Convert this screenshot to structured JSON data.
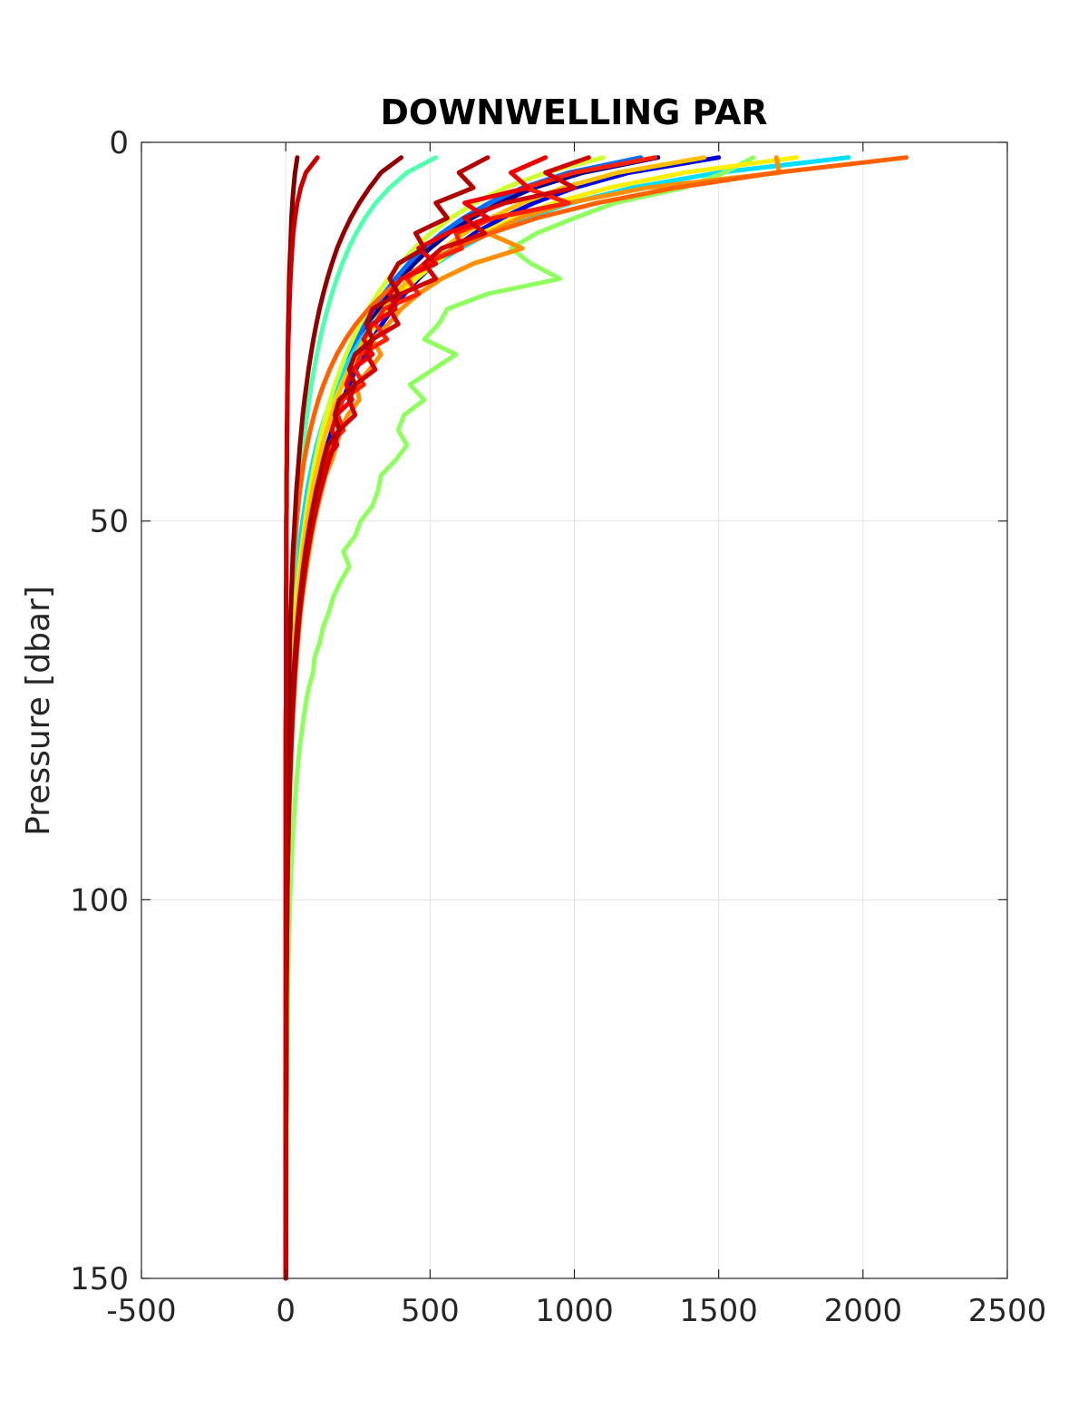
{
  "chart_data": {
    "type": "line",
    "title": "DOWNWELLING PAR",
    "xlabel": "",
    "ylabel": "Pressure [dbar]",
    "xlim": [
      -500,
      2500
    ],
    "ylim": [
      0,
      150
    ],
    "y_reversed": true,
    "grid": true,
    "xticks": [
      -500,
      0,
      500,
      1000,
      1500,
      2000,
      2500
    ],
    "yticks": [
      0,
      50,
      100,
      150
    ],
    "xtick_labels": [
      "-500",
      "0",
      "500",
      "1000",
      "1500",
      "2000",
      "2500"
    ],
    "ytick_labels": [
      "0",
      "50",
      "100",
      "150"
    ],
    "colormap": "jet",
    "y": [
      2,
      4,
      6,
      8,
      10,
      12,
      14,
      16,
      18,
      20,
      22,
      24,
      26,
      28,
      30,
      32,
      34,
      36,
      38,
      40,
      42,
      44,
      46,
      48,
      50,
      52,
      54,
      56,
      58,
      60,
      62,
      64,
      66,
      68,
      70,
      72,
      74,
      76,
      78,
      80,
      85,
      90,
      95,
      100,
      110,
      120,
      130,
      140,
      150
    ],
    "series": [
      {
        "color": "#00008F",
        "x": [
          1290,
          1030,
          860,
          740,
          645,
          565,
          500,
          445,
          400,
          360,
          323,
          290,
          262,
          236,
          213,
          192,
          173,
          156,
          141,
          127,
          114,
          103,
          93,
          84,
          76,
          68,
          62,
          56,
          50,
          45,
          41,
          37,
          33,
          30,
          27,
          24,
          22,
          20,
          18,
          16,
          12,
          9,
          7,
          5,
          3,
          2,
          1,
          1,
          0
        ]
      },
      {
        "color": "#0000DD",
        "x": [
          1500,
          1190,
          1000,
          860,
          750,
          655,
          580,
          515,
          460,
          412,
          370,
          333,
          300,
          270,
          243,
          219,
          197,
          177,
          160,
          144,
          130,
          117,
          105,
          95,
          85,
          77,
          69,
          62,
          56,
          50,
          45,
          41,
          37,
          33,
          30,
          27,
          24,
          22,
          20,
          18,
          13,
          10,
          7,
          5,
          3,
          2,
          1,
          1,
          0
        ]
      },
      {
        "color": "#006FFF",
        "x": [
          1230,
          980,
          820,
          705,
          615,
          540,
          478,
          425,
          380,
          340,
          305,
          274,
          247,
          222,
          200,
          180,
          162,
          146,
          131,
          118,
          106,
          96,
          86,
          78,
          70,
          63,
          57,
          51,
          46,
          41,
          37,
          34,
          30,
          27,
          25,
          22,
          20,
          18,
          16,
          15,
          11,
          8,
          6,
          4,
          2,
          1,
          1,
          0,
          0
        ]
      },
      {
        "color": "#00DFFF",
        "x": [
          1950,
          1500,
          1200,
          990,
          830,
          705,
          605,
          520,
          450,
          392,
          342,
          299,
          262,
          230,
          202,
          178,
          157,
          138,
          122,
          107,
          95,
          84,
          74,
          66,
          58,
          51,
          46,
          41,
          36,
          32,
          28,
          25,
          22,
          20,
          18,
          16,
          14,
          12,
          11,
          10,
          7,
          5,
          4,
          3,
          1,
          1,
          0,
          0,
          0
        ]
      },
      {
        "color": "#50FFAF",
        "x": [
          520,
          420,
          360,
          312,
          275,
          244,
          218,
          196,
          177,
          160,
          145,
          131,
          119,
          108,
          98,
          89,
          81,
          74,
          67,
          61,
          56,
          51,
          46,
          42,
          38,
          35,
          32,
          29,
          26,
          24,
          22,
          20,
          18,
          16,
          15,
          14,
          12,
          11,
          10,
          9,
          7,
          5,
          4,
          3,
          2,
          1,
          1,
          0,
          0
        ]
      },
      {
        "color": "#8FFF60",
        "x": [
          1620,
          1520,
          1380,
          1140,
          1000,
          870,
          780,
          850,
          950,
          700,
          560,
          530,
          480,
          590,
          510,
          430,
          480,
          410,
          390,
          420,
          380,
          330,
          320,
          300,
          260,
          240,
          200,
          220,
          190,
          165,
          150,
          130,
          118,
          100,
          95,
          80,
          70,
          62,
          55,
          48,
          36,
          27,
          20,
          15,
          8,
          5,
          3,
          2,
          1
        ]
      },
      {
        "color": "#D0FF2F",
        "x": [
          1100,
          900,
          760,
          655,
          572,
          503,
          446,
          397,
          355,
          318,
          286,
          257,
          232,
          209,
          189,
          170,
          154,
          139,
          125,
          113,
          102,
          92,
          83,
          75,
          68,
          61,
          55,
          50,
          45,
          40,
          36,
          33,
          30,
          27,
          24,
          22,
          20,
          18,
          16,
          14,
          10,
          8,
          6,
          4,
          2,
          1,
          1,
          0,
          0
        ]
      },
      {
        "color": "#FFEF00",
        "x": [
          1770,
          1380,
          1120,
          930,
          790,
          680,
          590,
          515,
          452,
          398,
          352,
          311,
          276,
          245,
          218,
          194,
          172,
          153,
          136,
          121,
          108,
          96,
          86,
          76,
          68,
          61,
          54,
          48,
          43,
          38,
          34,
          31,
          27,
          24,
          22,
          19,
          17,
          15,
          14,
          12,
          9,
          6,
          5,
          3,
          2,
          1,
          0,
          0,
          0
        ]
      },
      {
        "color": "#FFBF00",
        "x": [
          1450,
          1150,
          960,
          820,
          710,
          620,
          545,
          482,
          428,
          381,
          340,
          304,
          272,
          244,
          218,
          196,
          176,
          158,
          142,
          127,
          114,
          103,
          92,
          83,
          74,
          67,
          60,
          54,
          48,
          43,
          39,
          35,
          31,
          28,
          25,
          23,
          20,
          18,
          16,
          15,
          11,
          8,
          6,
          4,
          2,
          1,
          1,
          0,
          0
        ]
      },
      {
        "color": "#FF8F00",
        "x": [
          1700,
          1710,
          1250,
          980,
          810,
          700,
          820,
          650,
          540,
          460,
          400,
          355,
          300,
          330,
          290,
          245,
          255,
          215,
          190,
          175,
          160,
          138,
          125,
          112,
          100,
          90,
          81,
          73,
          65,
          58,
          52,
          47,
          42,
          38,
          34,
          31,
          28,
          25,
          22,
          20,
          15,
          11,
          8,
          6,
          3,
          2,
          1,
          0,
          0
        ]
      },
      {
        "color": "#FF6000",
        "x": [
          2150,
          1700,
          1350,
          1080,
          870,
          710,
          585,
          485,
          405,
          340,
          287,
          243,
          207,
          177,
          152,
          131,
          113,
          98,
          85,
          74,
          64,
          56,
          49,
          43,
          38,
          33,
          29,
          26,
          23,
          20,
          18,
          16,
          14,
          12,
          11,
          10,
          9,
          8,
          7,
          6,
          4,
          3,
          2,
          2,
          1,
          0,
          0,
          0,
          0
        ]
      },
      {
        "color": "#FF2000",
        "x": [
          1280,
          1000,
          830,
          980,
          720,
          590,
          610,
          480,
          420,
          460,
          340,
          310,
          350,
          260,
          240,
          270,
          195,
          180,
          200,
          150,
          138,
          125,
          110,
          100,
          90,
          80,
          72,
          64,
          57,
          51,
          46,
          41,
          37,
          33,
          30,
          27,
          24,
          21,
          19,
          17,
          13,
          10,
          7,
          5,
          3,
          2,
          1,
          0,
          0
        ]
      },
      {
        "color": "#EF0000",
        "x": [
          900,
          780,
          840,
          620,
          700,
          560,
          460,
          520,
          400,
          360,
          380,
          300,
          270,
          300,
          230,
          210,
          230,
          175,
          160,
          178,
          135,
          122,
          108,
          97,
          87,
          78,
          70,
          62,
          56,
          50,
          45,
          40,
          36,
          32,
          29,
          26,
          23,
          21,
          19,
          17,
          12,
          9,
          7,
          5,
          3,
          2,
          1,
          0,
          0
        ]
      },
      {
        "color": "#D00000",
        "x": [
          1050,
          900,
          1000,
          760,
          620,
          690,
          540,
          480,
          520,
          400,
          360,
          390,
          300,
          280,
          310,
          240,
          220,
          240,
          185,
          168,
          150,
          135,
          120,
          108,
          96,
          86,
          77,
          69,
          62,
          55,
          49,
          44,
          40,
          36,
          32,
          29,
          26,
          23,
          21,
          19,
          14,
          10,
          7,
          5,
          3,
          2,
          1,
          0,
          0
        ]
      },
      {
        "color": "#B00000",
        "x": [
          700,
          600,
          650,
          520,
          560,
          450,
          480,
          390,
          360,
          390,
          300,
          280,
          300,
          240,
          220,
          240,
          185,
          170,
          185,
          145,
          130,
          118,
          105,
          95,
          85,
          76,
          68,
          61,
          55,
          49,
          44,
          39,
          35,
          31,
          28,
          25,
          23,
          20,
          18,
          16,
          12,
          9,
          6,
          4,
          2,
          1,
          1,
          0,
          0
        ]
      },
      {
        "color": "#900000",
        "x": [
          400,
          330,
          290,
          255,
          225,
          200,
          178,
          160,
          144,
          130,
          117,
          106,
          96,
          87,
          79,
          72,
          65,
          59,
          54,
          49,
          45,
          41,
          37,
          34,
          31,
          28,
          25,
          23,
          21,
          19,
          17,
          16,
          14,
          13,
          12,
          11,
          10,
          9,
          8,
          7,
          5,
          4,
          3,
          2,
          1,
          1,
          0,
          0,
          0
        ]
      },
      {
        "color": "#800000",
        "x": [
          40,
          32,
          27,
          23,
          20,
          18,
          16,
          14,
          12,
          11,
          10,
          9,
          8,
          7,
          7,
          6,
          5,
          5,
          4,
          4,
          4,
          3,
          3,
          3,
          2,
          2,
          2,
          2,
          2,
          1,
          1,
          1,
          1,
          1,
          1,
          1,
          1,
          1,
          0,
          0,
          0,
          0,
          0,
          0,
          0,
          0,
          0,
          0,
          0
        ]
      },
      {
        "color": "#C80000",
        "x": [
          110,
          70,
          52,
          40,
          32,
          26,
          22,
          19,
          16,
          14,
          12,
          11,
          9,
          8,
          7,
          6,
          6,
          5,
          5,
          4,
          4,
          3,
          3,
          3,
          2,
          2,
          2,
          2,
          2,
          1,
          1,
          1,
          1,
          1,
          1,
          1,
          1,
          0,
          0,
          0,
          0,
          0,
          0,
          0,
          0,
          0,
          0,
          0,
          0
        ]
      }
    ]
  }
}
